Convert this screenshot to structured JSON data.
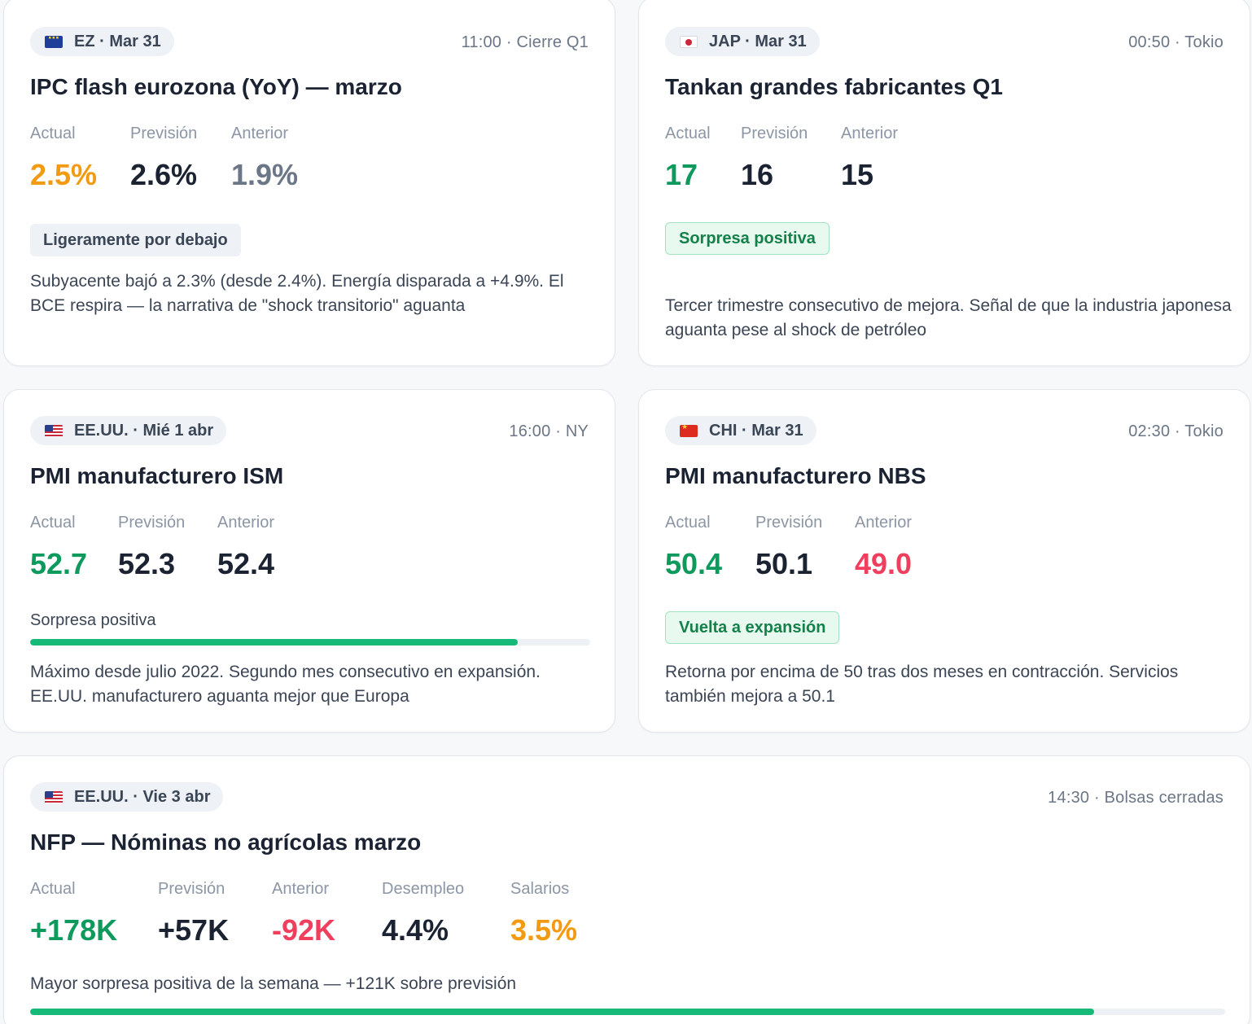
{
  "colors": {
    "orange": "#f29b12",
    "dark": "#1b2333",
    "muted": "#6b7687",
    "green": "#0f9a5d",
    "red": "#f03e5e",
    "bar_green": "#17b978"
  },
  "cards": [
    {
      "flag_icon": "eu-flag-icon",
      "tag": "EZ · Mar 31",
      "time": "11:00 · Cierre Q1",
      "title": "IPC flash eurozona (YoY) — marzo",
      "metrics": [
        {
          "label": "Actual",
          "value": "2.5%",
          "color": "orange"
        },
        {
          "label": "Previsión",
          "value": "2.6%",
          "color": "dark"
        },
        {
          "label": "Anterior",
          "value": "1.9%",
          "color": "muted"
        }
      ],
      "badge": "Ligeramente por debajo",
      "description": "Subyacente bajó a 2.3% (desde 2.4%). Energía disparada a +4.9%. El BCE respira — la narrativa de \"shock transitorio\" aguanta"
    },
    {
      "flag_icon": "japan-flag-icon",
      "tag": "JAP · Mar 31",
      "time": "00:50 · Tokio",
      "title": "Tankan grandes fabricantes Q1",
      "metrics": [
        {
          "label": "Actual",
          "value": "17",
          "color": "green"
        },
        {
          "label": "Previsión",
          "value": "16",
          "color": "dark"
        },
        {
          "label": "Anterior",
          "value": "15",
          "color": "dark"
        }
      ],
      "badge": "Sorpresa positiva",
      "description": "Tercer trimestre consecutivo de mejora. Señal de que la industria japonesa aguanta pese al shock de petróleo"
    },
    {
      "flag_icon": "us-flag-icon",
      "tag": "EE.UU. · Mié 1 abr",
      "time": "16:00 · NY",
      "title": "PMI manufacturero ISM",
      "metrics": [
        {
          "label": "Actual",
          "value": "52.7",
          "color": "green"
        },
        {
          "label": "Previsión",
          "value": "52.3",
          "color": "dark"
        },
        {
          "label": "Anterior",
          "value": "52.4",
          "color": "dark"
        }
      ],
      "bar_label": "Sorpresa positiva",
      "bar_fraction": 0.87,
      "description": "Máximo desde julio 2022. Segundo mes consecutivo en expansión. EE.UU. manufacturero aguanta mejor que Europa"
    },
    {
      "flag_icon": "china-flag-icon",
      "tag": "CHI · Mar 31",
      "time": "02:30 · Tokio",
      "title": "PMI manufacturero NBS",
      "metrics": [
        {
          "label": "Actual",
          "value": "50.4",
          "color": "green"
        },
        {
          "label": "Previsión",
          "value": "50.1",
          "color": "dark"
        },
        {
          "label": "Anterior",
          "value": "49.0",
          "color": "red"
        }
      ],
      "badge": "Vuelta a expansión",
      "description": "Retorna por encima de 50 tras dos meses en contracción. Servicios también mejora a 50.1"
    },
    {
      "flag_icon": "us-flag-icon",
      "tag": "EE.UU. · Vie 3 abr",
      "time": "14:30 · Bolsas cerradas",
      "title": "NFP — Nóminas no agrícolas marzo",
      "metrics": [
        {
          "label": "Actual",
          "value": "+178K",
          "color": "green"
        },
        {
          "label": "Previsión",
          "value": "+57K",
          "color": "dark"
        },
        {
          "label": "Anterior",
          "value": "-92K",
          "color": "red"
        },
        {
          "label": "Desempleo",
          "value": "4.4%",
          "color": "dark"
        },
        {
          "label": "Salarios",
          "value": "3.5%",
          "color": "orange"
        }
      ],
      "bar_label": "Mayor sorpresa positiva de la semana — +121K sobre previsión",
      "bar_fraction": 0.89
    }
  ]
}
